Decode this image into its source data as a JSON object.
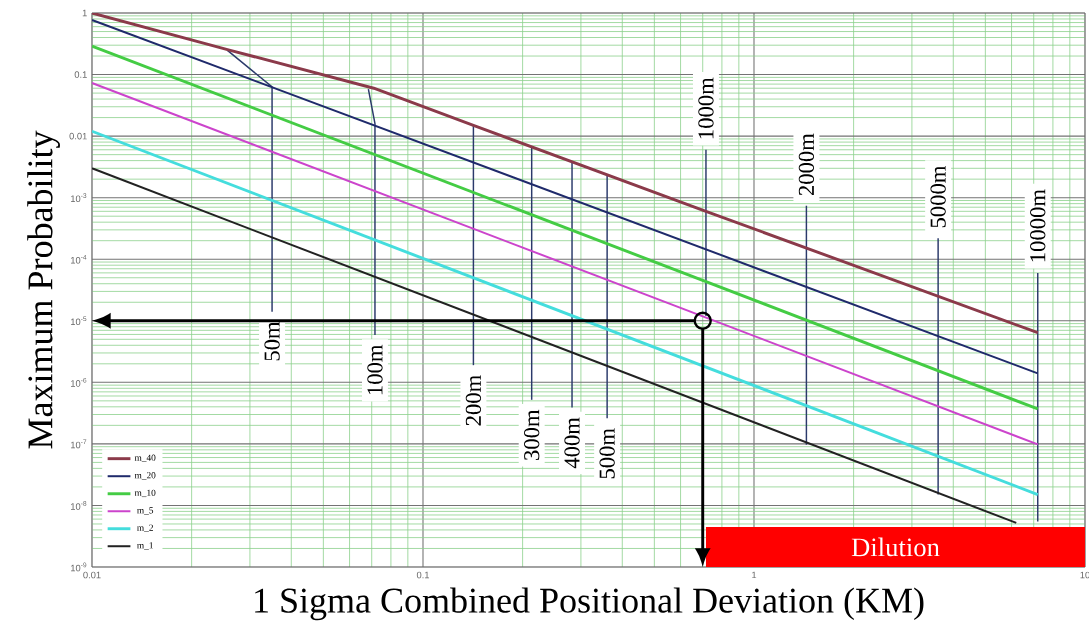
{
  "chart_data": {
    "type": "line",
    "xlabel": "1 Sigma Combined Positional Deviation (KM)",
    "ylabel": "Maximum Probability",
    "log": "xy",
    "xlim": [
      0.01,
      10
    ],
    "ylim": [
      1e-09,
      1
    ],
    "xticks": [
      0.01,
      {
        "value": 0.02,
        "label": null
      },
      {
        "value": 0.03,
        "label": null
      },
      {
        "value": 0.04,
        "label": null
      },
      {
        "value": 0.05,
        "label": null
      },
      {
        "value": 0.06,
        "label": null
      },
      {
        "value": 0.07,
        "label": null
      },
      {
        "value": 0.08,
        "label": null
      },
      {
        "value": 0.09,
        "label": null
      },
      0.1,
      {
        "value": 0.2,
        "label": null
      },
      {
        "value": 0.3,
        "label": null
      },
      {
        "value": 0.4,
        "label": null
      },
      {
        "value": 0.5,
        "label": null
      },
      {
        "value": 0.6,
        "label": null
      },
      {
        "value": 0.7,
        "label": null
      },
      {
        "value": 0.8,
        "label": null
      },
      {
        "value": 0.9,
        "label": null
      },
      1,
      {
        "value": 2,
        "label": null
      },
      {
        "value": 3,
        "label": null
      },
      {
        "value": 4,
        "label": null
      },
      {
        "value": 5,
        "label": null
      },
      {
        "value": 6,
        "label": null
      },
      {
        "value": 7,
        "label": null
      },
      {
        "value": 8,
        "label": null
      },
      {
        "value": 9,
        "label": null
      },
      10
    ],
    "yticks": [
      {
        "value": 1e-09,
        "label": "10$^{-9}$"
      },
      {
        "value": 2e-09,
        "label": null
      },
      {
        "value": 3e-09,
        "label": null
      },
      {
        "value": 4e-09,
        "label": null
      },
      {
        "value": 5e-09,
        "label": null
      },
      {
        "value": 6e-09,
        "label": null
      },
      {
        "value": 7e-09,
        "label": null
      },
      {
        "value": 8e-09,
        "label": null
      },
      {
        "value": 9e-09,
        "label": null
      },
      {
        "value": 1e-08,
        "label": "10$^{-8}$"
      },
      {
        "value": 2e-08,
        "label": null
      },
      {
        "value": 3e-08,
        "label": null
      },
      {
        "value": 4e-08,
        "label": null
      },
      {
        "value": 5e-08,
        "label": null
      },
      {
        "value": 6e-08,
        "label": null
      },
      {
        "value": 7e-08,
        "label": null
      },
      {
        "value": 8e-08,
        "label": null
      },
      {
        "value": 9e-08,
        "label": null
      },
      {
        "value": 1e-07,
        "label": "10$^{-7}$"
      },
      {
        "value": 2e-07,
        "label": null
      },
      {
        "value": 3e-07,
        "label": null
      },
      {
        "value": 4e-07,
        "label": null
      },
      {
        "value": 5e-07,
        "label": null
      },
      {
        "value": 6e-07,
        "label": null
      },
      {
        "value": 7e-07,
        "label": null
      },
      {
        "value": 8e-07,
        "label": null
      },
      {
        "value": 9e-07,
        "label": null
      },
      {
        "value": 1e-06,
        "label": "10$^{-6}$"
      },
      {
        "value": 2e-06,
        "label": null
      },
      {
        "value": 3e-06,
        "label": null
      },
      {
        "value": 4e-06,
        "label": null
      },
      {
        "value": 5e-06,
        "label": null
      },
      {
        "value": 6e-06,
        "label": null
      },
      {
        "value": 7e-06,
        "label": null
      },
      {
        "value": 8e-06,
        "label": null
      },
      {
        "value": 9e-06,
        "label": null
      },
      {
        "value": 1e-05,
        "label": "10$^{-5}$"
      },
      {
        "value": 2e-05,
        "label": null
      },
      {
        "value": 3e-05,
        "label": null
      },
      {
        "value": 4e-05,
        "label": null
      },
      {
        "value": 5e-05,
        "label": null
      },
      {
        "value": 6e-05,
        "label": null
      },
      {
        "value": 7e-05,
        "label": null
      },
      {
        "value": 8e-05,
        "label": null
      },
      {
        "value": 9e-05,
        "label": null
      },
      {
        "value": 0.0001,
        "label": "10$^{-4}$"
      },
      {
        "value": 0.0002,
        "label": null
      },
      {
        "value": 0.0003,
        "label": null
      },
      {
        "value": 0.0004,
        "label": null
      },
      {
        "value": 0.0005,
        "label": null
      },
      {
        "value": 0.0006,
        "label": null
      },
      {
        "value": 0.0007,
        "label": null
      },
      {
        "value": 0.0008,
        "label": null
      },
      {
        "value": 0.0009,
        "label": null
      },
      {
        "value": 0.001,
        "label": "10$^{-3}$"
      },
      {
        "value": 0.002,
        "label": null
      },
      {
        "value": 0.003,
        "label": null
      },
      {
        "value": 0.004,
        "label": null
      },
      {
        "value": 0.005,
        "label": null
      },
      {
        "value": 0.006,
        "label": null
      },
      {
        "value": 0.007,
        "label": null
      },
      {
        "value": 0.008,
        "label": null
      },
      {
        "value": 0.009,
        "label": null
      },
      0.01,
      {
        "value": 0.02,
        "label": null
      },
      {
        "value": 0.03,
        "label": null
      },
      {
        "value": 0.04,
        "label": null
      },
      {
        "value": 0.05,
        "label": null
      },
      {
        "value": 0.06,
        "label": null
      },
      {
        "value": 0.07,
        "label": null
      },
      {
        "value": 0.08,
        "label": null
      },
      {
        "value": 0.09,
        "label": null
      },
      0.1,
      {
        "value": 0.2,
        "label": null
      },
      {
        "value": 0.3,
        "label": null
      },
      {
        "value": 0.4,
        "label": null
      },
      {
        "value": 0.5,
        "label": null
      },
      {
        "value": 0.6,
        "label": null
      },
      {
        "value": 0.7,
        "label": null
      },
      {
        "value": 0.8,
        "label": null
      },
      {
        "value": 0.9,
        "label": null
      },
      1
    ],
    "grid": true,
    "legend": "bottom left",
    "marker": "none",
    "line_style": "solid",
    "series": [
      {
        "type": "line",
        "color": "#2b3a6b",
        "x": [
          0.0256,
          0.035,
          0.035
        ],
        "values": [
          0.25,
          0.063,
          1.4e-05
        ]
      },
      {
        "type": "line",
        "color": "#2b3a6b",
        "x": [
          0.0684,
          0.0716,
          0.0716
        ],
        "values": [
          0.058,
          0.016,
          5.9e-06
        ]
      },
      {
        "type": "line",
        "color": "#2b3a6b",
        "x": [
          0.142,
          0.142
        ],
        "values": [
          0.015,
          1.9e-06
        ]
      },
      {
        "type": "line",
        "color": "#2b3a6b",
        "x": [
          0.213,
          0.213
        ],
        "values": [
          0.0067,
          5.2e-07
        ]
      },
      {
        "type": "line",
        "color": "#2b3a6b",
        "x": [
          0.282,
          0.282
        ],
        "values": [
          0.0038,
          3.9e-07
        ]
      },
      {
        "type": "line",
        "color": "#2b3a6b",
        "x": [
          0.36,
          0.36
        ],
        "values": [
          0.0023,
          2.6e-07
        ]
      },
      {
        "type": "line",
        "color": "#2b3a6b",
        "x": [
          0.716,
          0.716
        ],
        "values": [
          1.2e-05,
          0.006
        ]
      },
      {
        "type": "line",
        "color": "#2b3a6b",
        "x": [
          1.44,
          1.44
        ],
        "values": [
          9.7e-08,
          0.00074
        ]
      },
      {
        "type": "line",
        "color": "#2b3a6b",
        "x": [
          3.6,
          3.6
        ],
        "values": [
          1.5e-08,
          0.00022
        ]
      },
      {
        "type": "line",
        "color": "#2b3a6b",
        "x": [
          7.2,
          7.2
        ],
        "values": [
          5.5e-09,
          6e-05
        ]
      },
      {
        "name": "m_40",
        "color": "#8b3a4a",
        "x": [
          0.01,
          0.026,
          0.071,
          0.142,
          0.716,
          7.2
        ],
        "values": [
          1,
          0.25,
          0.06,
          0.015,
          0.0006,
          6.4e-06
        ]
      },
      {
        "name": "m_20",
        "color": "#1f2a6b",
        "x": [
          0.01,
          7.2
        ],
        "values": [
          0.77,
          1.4e-06
        ]
      },
      {
        "name": "m_10",
        "color": "#44cc44",
        "x": [
          0.01,
          7.2
        ],
        "values": [
          0.29,
          3.7e-07
        ]
      },
      {
        "name": "m_5",
        "color": "#cc44cc",
        "x": [
          0.01,
          7.2
        ],
        "values": [
          0.073,
          9.8e-08
        ]
      },
      {
        "name": "m_2",
        "color": "#44dddd",
        "x": [
          0.01,
          7.2
        ],
        "values": [
          0.012,
          1.5e-08
        ]
      },
      {
        "name": "m_1",
        "color": "#222222",
        "x": [
          0.01,
          6.2
        ],
        "values": [
          0.003,
          5.2e-09
        ]
      },
      {
        "type": "scatter",
        "marker": "circle",
        "color": "#000000",
        "x": [
          0.7
        ],
        "values": [
          1e-05
        ]
      }
    ],
    "bands": [
      {
        "axis": "x",
        "from": 0.716,
        "to": 10,
        "label": "Dilution",
        "color": "#ff0000"
      }
    ],
    "annotations": [
      {
        "text": "50m",
        "x": 0.035,
        "y": 1.4e-05
      },
      {
        "text": "100m",
        "x": 0.0716,
        "y": 5.9e-06
      },
      {
        "text": "200m",
        "x": 0.142,
        "y": 1.9e-06
      },
      {
        "text": "300m",
        "x": 0.213,
        "y": 5.2e-07
      },
      {
        "text": "400m",
        "x": 0.282,
        "y": 3.9e-07
      },
      {
        "text": "500m",
        "x": 0.36,
        "y": 2.6e-07
      },
      {
        "text": "1000m",
        "x": 0.716,
        "y": 0.006
      },
      {
        "text": "2000m",
        "x": 1.44,
        "y": 0.00074
      },
      {
        "text": "5000m",
        "x": 3.6,
        "y": 0.00022
      },
      {
        "text": "10000m",
        "x": 7.2,
        "y": 6e-05
      }
    ]
  }
}
